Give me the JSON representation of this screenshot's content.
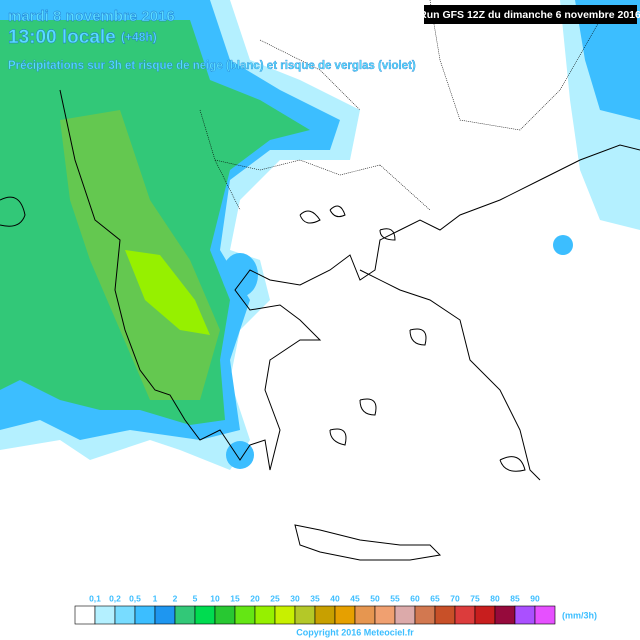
{
  "header": {
    "date": "mardi 8 novembre 2016",
    "time": "13:00 locale",
    "lead": "(+48h)",
    "subtitle": "Précipitations sur 3h et risque de neige (blanc) et risque de verglas (violet)"
  },
  "run": "Run GFS 12Z du dimanche 6 novembre 2016",
  "legend": {
    "labels": [
      "0,1",
      "0,2",
      "0,5",
      "1",
      "2",
      "5",
      "10",
      "15",
      "20",
      "25",
      "30",
      "35",
      "40",
      "45",
      "50",
      "55",
      "60",
      "65",
      "70",
      "75",
      "80",
      "85",
      "90"
    ],
    "colors": [
      "#ffffff",
      "#b4f0ff",
      "#78dcff",
      "#3cbeff",
      "#1e96f0",
      "#32c878",
      "#00dc50",
      "#28c832",
      "#64e614",
      "#96f000",
      "#c8f000",
      "#b4c828",
      "#c8a000",
      "#e6a000",
      "#e69650",
      "#f0a070",
      "#dcaaaa",
      "#d27850",
      "#c85028",
      "#dc3c3c",
      "#c81e1e",
      "#960a3c",
      "#aa50ff",
      "#e650ff"
    ],
    "unit": "(mm/3h)"
  },
  "copyright": "Copyright 2016 Meteociel.fr"
}
